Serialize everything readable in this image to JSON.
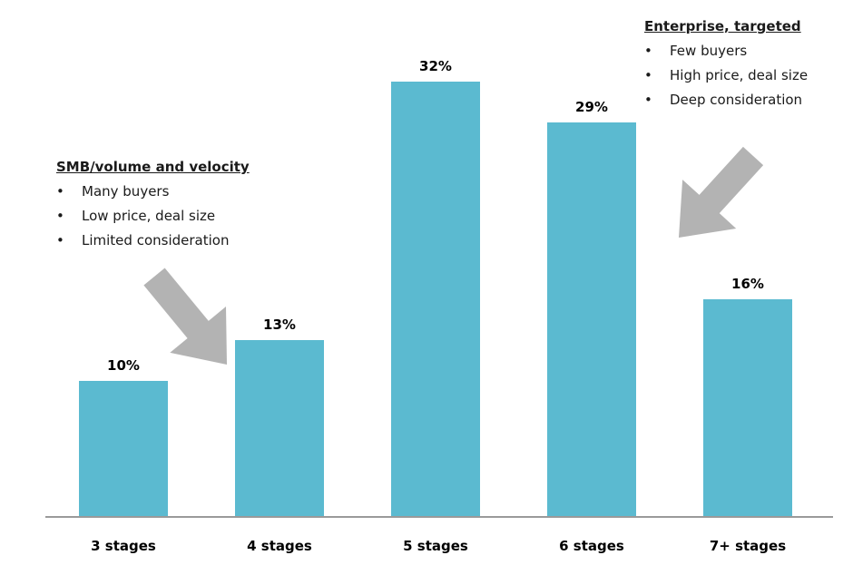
{
  "chart_data": {
    "type": "bar",
    "categories": [
      "3 stages",
      "4 stages",
      "5 stages",
      "6 stages",
      "7+ stages"
    ],
    "values": [
      10,
      13,
      32,
      29,
      16
    ],
    "value_labels": [
      "10%",
      "13%",
      "32%",
      "29%",
      "16%"
    ],
    "title": "",
    "xlabel": "",
    "ylabel": "",
    "ylim": [
      0,
      36
    ],
    "grid": false,
    "bar_color": "#5bbad0",
    "axis_color": "#9a9a9a"
  },
  "annotations": {
    "smb": {
      "title": "SMB/volume and velocity",
      "bullet": "•",
      "items": [
        "Many buyers",
        "Low price, deal size",
        "Limited consideration"
      ]
    },
    "enterprise": {
      "title": "Enterprise, targeted",
      "bullet": "•",
      "items": [
        "Few buyers",
        "High price, deal size",
        "Deep consideration"
      ]
    },
    "arrow_color": "#b3b3b3"
  }
}
